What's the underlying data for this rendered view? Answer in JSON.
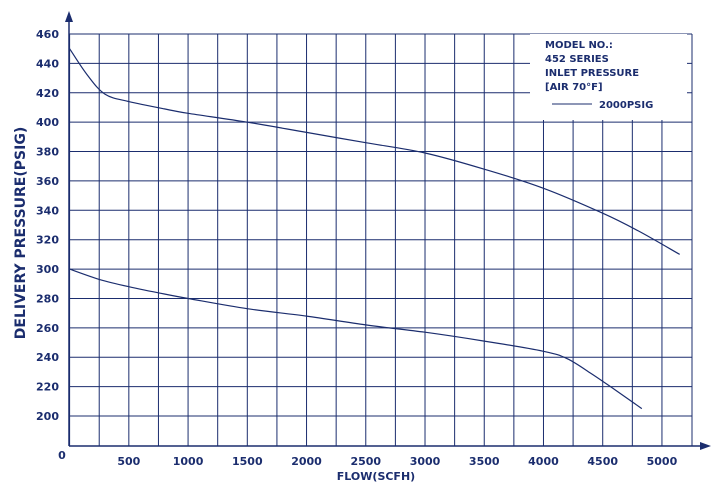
{
  "chart_data": {
    "type": "line",
    "xlabel": "FLOW(SCFH)",
    "ylabel": "DELIVERY PRESSURE(PSIG)",
    "xlim": [
      0,
      5200
    ],
    "ylim": [
      190,
      460
    ],
    "x_ticks": [
      "500",
      "1000",
      "1500",
      "2000",
      "2500",
      "3000",
      "3500",
      "4000",
      "4500",
      "5000"
    ],
    "x_tick_values": [
      500,
      1000,
      1500,
      2000,
      2500,
      3000,
      3500,
      4000,
      4500,
      5000
    ],
    "y_ticks": [
      "200",
      "220",
      "240",
      "260",
      "280",
      "300",
      "320",
      "340",
      "360",
      "380",
      "400",
      "420",
      "440",
      "460"
    ],
    "y_tick_values": [
      200,
      220,
      240,
      260,
      280,
      300,
      320,
      340,
      360,
      380,
      400,
      420,
      440,
      460
    ],
    "origin_label": "0",
    "grid": true,
    "legend": {
      "placement": "top-right",
      "lines": [
        "MODEL NO.:",
        "452 SERIES",
        "INLET PRESSURE",
        "[AIR 70°F]"
      ],
      "entry": "2000PSIG"
    },
    "series": [
      {
        "name": "2000PSIG",
        "x": [
          0,
          150,
          300,
          500,
          800,
          1000,
          1500,
          2000,
          2500,
          3000,
          3500,
          4000,
          4500,
          4800,
          5150
        ],
        "y": [
          450,
          432,
          419,
          414,
          409,
          406,
          400,
          393,
          386,
          379,
          368,
          355,
          338,
          326,
          310
        ]
      },
      {
        "x": [
          0,
          250,
          500,
          800,
          1000,
          1500,
          2000,
          2500,
          3000,
          3500,
          4000,
          4200,
          4400,
          4600,
          4830
        ],
        "y": [
          300,
          293,
          288,
          283,
          280,
          273,
          268,
          262,
          257,
          251,
          244,
          239,
          229,
          218,
          205
        ]
      }
    ],
    "colors": {
      "grid": "#1b2d6e",
      "line": "#1b2d6e",
      "text": "#1b2d6e",
      "background": "#ffffff"
    }
  }
}
